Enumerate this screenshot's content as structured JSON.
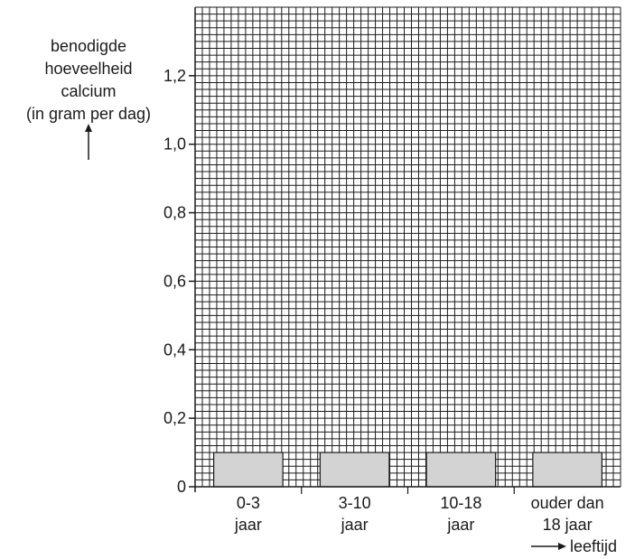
{
  "chart_data": {
    "type": "bar",
    "title": "",
    "ylabel_lines": [
      "benodigde",
      "hoeveelheid",
      "calcium",
      "(in gram per dag)"
    ],
    "xlabel": "leeftijd",
    "categories": [
      [
        "0-3",
        "jaar"
      ],
      [
        "3-10",
        "jaar"
      ],
      [
        "10-18",
        "jaar"
      ],
      [
        "ouder dan",
        "18 jaar"
      ]
    ],
    "values": [
      0.1,
      0.1,
      0.1,
      0.1
    ],
    "ylim": [
      0,
      1.4
    ],
    "yticks": [
      {
        "value": 0,
        "label": "0"
      },
      {
        "value": 0.2,
        "label": "0,2"
      },
      {
        "value": 0.4,
        "label": "0,4"
      },
      {
        "value": 0.6,
        "label": "0,6"
      },
      {
        "value": 0.8,
        "label": "0,8"
      },
      {
        "value": 1.0,
        "label": "1,0"
      },
      {
        "value": 1.2,
        "label": "1,2"
      }
    ],
    "grid": true,
    "grid_step": 0.02,
    "bar_color": "#d3d3d3",
    "grid_color": "#1a1a1a"
  }
}
